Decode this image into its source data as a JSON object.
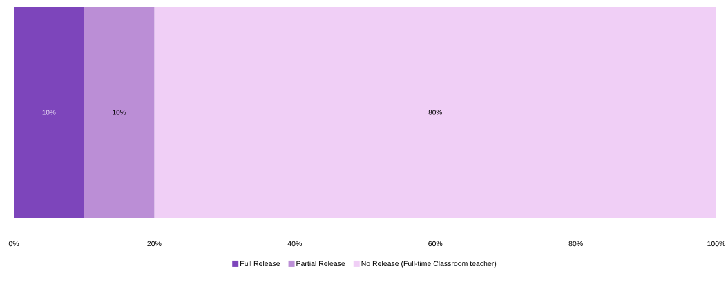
{
  "chart_data": {
    "type": "bar",
    "orientation": "horizontal",
    "stacked": true,
    "categories": [
      null
    ],
    "series": [
      {
        "name": "Full Release",
        "color": "#7d45bb",
        "values": [
          10
        ],
        "value_labels": [
          "10%"
        ]
      },
      {
        "name": "Partial Release",
        "color": "#bb8ed6",
        "values": [
          10
        ],
        "value_labels": [
          "10%"
        ]
      },
      {
        "name": "No Release (Full-time Classroom teacher)",
        "color": "#f0cff6",
        "values": [
          80
        ],
        "value_labels": [
          "80%"
        ]
      }
    ],
    "xlim": [
      0,
      100
    ],
    "xticks": [
      {
        "value": 0,
        "label": "0%"
      },
      {
        "value": 20,
        "label": "20%"
      },
      {
        "value": 40,
        "label": "40%"
      },
      {
        "value": 60,
        "label": "60%"
      },
      {
        "value": 80,
        "label": "80%"
      },
      {
        "value": 100,
        "label": "100%"
      }
    ],
    "grid": false,
    "legend": "bottom"
  }
}
